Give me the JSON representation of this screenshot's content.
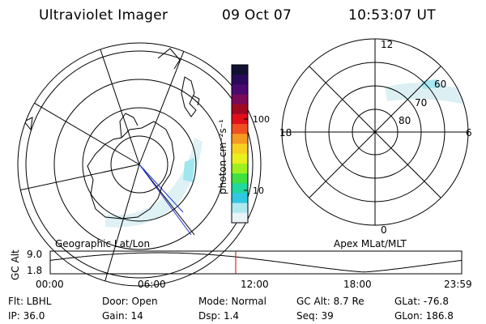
{
  "header": {
    "instrument": "Ultraviolet Imager",
    "date": "09 Oct 07",
    "time": "10:53:07 UT"
  },
  "colorbar": {
    "unit_label": "photon cm⁻²s⁻¹",
    "ticks": [
      "100",
      "10"
    ],
    "colors": [
      "#111133",
      "#2a0a5a",
      "#4a0a70",
      "#7a0a5a",
      "#a00a20",
      "#e0101a",
      "#f05020",
      "#f59a20",
      "#f7d020",
      "#e8f020",
      "#a0f020",
      "#40e040",
      "#20d8a0",
      "#30c8e0",
      "#b0e8f0",
      "#e8f4f8"
    ]
  },
  "maps": {
    "left_caption": "Geographic Lat/Lon",
    "right_caption": "Apex MLat/MLT",
    "right_hour_labels": [
      "12",
      "18",
      "6",
      "0"
    ],
    "right_lat_labels": [
      "60",
      "70",
      "80"
    ]
  },
  "altitude_plot": {
    "ylabel": "GC Alt",
    "yticks": [
      "9.0",
      "1.8"
    ],
    "xticks": [
      "00:00",
      "06:00",
      "12:00",
      "18:00",
      "23:59"
    ],
    "marker_color": "#cc0000"
  },
  "info": {
    "flt": "Flt: LBHL",
    "door": "Door: Open",
    "mode": "Mode: Normal",
    "gcalt": "GC Alt: 8.7 Re",
    "glat": "GLat: -76.8",
    "ip": "IP: 36.0",
    "gain": "Gain: 14",
    "dsp": "Dsp:    1.4",
    "seq": "Seq: 39",
    "glon": "GLon: 186.8"
  }
}
